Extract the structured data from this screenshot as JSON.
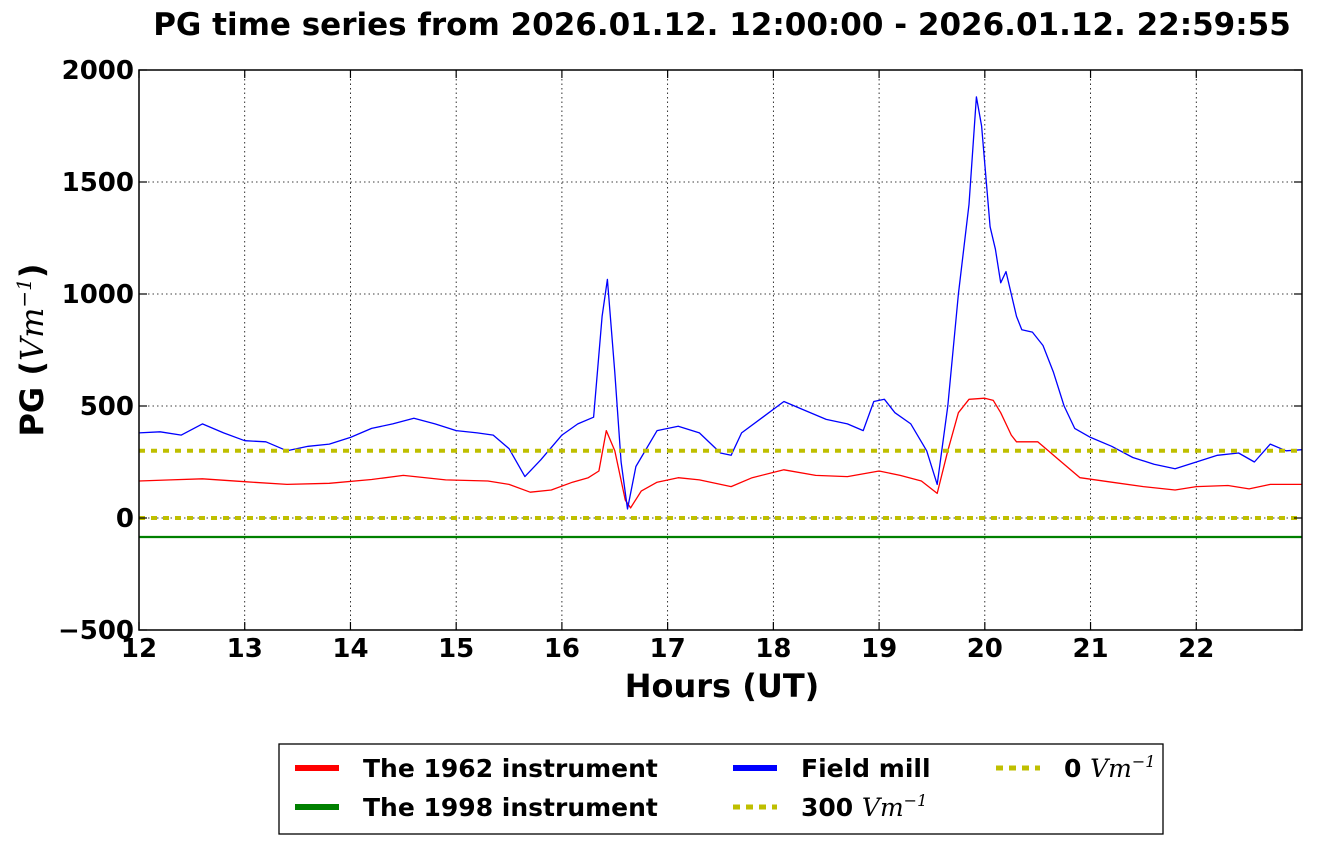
{
  "chart_data": {
    "type": "line",
    "title": "PG time series from 2026.01.12. 12:00:00 - 2026.01.12. 22:59:55",
    "xlabel": "Hours (UT)",
    "ylabel": "PG (",
    "ylabel_unit": "Vm",
    "ylabel_exp": "−1",
    "ylabel_close": ")",
    "xlim": [
      12,
      23
    ],
    "ylim": [
      -500,
      2000
    ],
    "xticks": [
      12,
      13,
      14,
      15,
      16,
      17,
      18,
      19,
      20,
      21,
      22
    ],
    "yticks": [
      -500,
      0,
      500,
      1000,
      1500,
      2000
    ],
    "ytick_labels": [
      "−500",
      "0",
      "500",
      "1000",
      "1500",
      "2000"
    ],
    "grid": true,
    "legend_position": "bottom",
    "series": [
      {
        "name": "The 1962 instrument",
        "color": "#ff0000",
        "style": "solid",
        "x": [
          12.0,
          12.3,
          12.6,
          13.0,
          13.4,
          13.8,
          14.2,
          14.5,
          14.9,
          15.3,
          15.5,
          15.7,
          15.9,
          16.1,
          16.25,
          16.35,
          16.42,
          16.5,
          16.6,
          16.65,
          16.75,
          16.9,
          17.1,
          17.3,
          17.6,
          17.8,
          18.1,
          18.4,
          18.7,
          19.0,
          19.2,
          19.4,
          19.55,
          19.65,
          19.75,
          19.85,
          20.0,
          20.08,
          20.15,
          20.2,
          20.25,
          20.3,
          20.5,
          20.6,
          20.7,
          20.8,
          20.9,
          21.2,
          21.5,
          21.8,
          22.0,
          22.3,
          22.5,
          22.7,
          23.0
        ],
        "y": [
          165,
          170,
          175,
          162,
          150,
          155,
          172,
          190,
          170,
          165,
          150,
          115,
          125,
          160,
          180,
          210,
          390,
          300,
          80,
          45,
          120,
          160,
          180,
          170,
          140,
          180,
          215,
          190,
          185,
          210,
          190,
          165,
          110,
          300,
          470,
          530,
          535,
          525,
          470,
          420,
          370,
          340,
          340,
          300,
          260,
          220,
          180,
          160,
          140,
          125,
          140,
          145,
          130,
          150,
          150
        ]
      },
      {
        "name": "The 1998 instrument",
        "color": "#008000",
        "style": "solid",
        "x": [
          12.0,
          23.0
        ],
        "y": [
          -85,
          -85
        ]
      },
      {
        "name": "Field mill",
        "color": "#0000ff",
        "style": "solid",
        "x": [
          12.0,
          12.2,
          12.4,
          12.6,
          12.8,
          13.0,
          13.2,
          13.4,
          13.6,
          13.8,
          14.0,
          14.2,
          14.4,
          14.6,
          14.8,
          15.0,
          15.2,
          15.35,
          15.5,
          15.65,
          15.8,
          16.0,
          16.15,
          16.3,
          16.38,
          16.43,
          16.5,
          16.56,
          16.62,
          16.7,
          16.9,
          17.1,
          17.3,
          17.5,
          17.6,
          17.7,
          17.9,
          18.1,
          18.3,
          18.5,
          18.7,
          18.85,
          18.95,
          19.05,
          19.15,
          19.3,
          19.45,
          19.55,
          19.65,
          19.75,
          19.85,
          19.92,
          19.97,
          20.05,
          20.1,
          20.15,
          20.2,
          20.3,
          20.35,
          20.45,
          20.55,
          20.65,
          20.75,
          20.85,
          21.0,
          21.2,
          21.4,
          21.6,
          21.8,
          22.0,
          22.2,
          22.4,
          22.55,
          22.7,
          22.85,
          23.0
        ],
        "y": [
          380,
          385,
          370,
          420,
          380,
          345,
          340,
          300,
          320,
          330,
          360,
          400,
          420,
          445,
          420,
          390,
          380,
          370,
          310,
          185,
          260,
          370,
          420,
          450,
          900,
          1065,
          650,
          250,
          40,
          230,
          390,
          410,
          380,
          290,
          280,
          380,
          450,
          520,
          480,
          440,
          420,
          390,
          520,
          530,
          470,
          420,
          300,
          150,
          500,
          1000,
          1400,
          1880,
          1750,
          1300,
          1200,
          1050,
          1100,
          900,
          840,
          830,
          770,
          650,
          500,
          400,
          360,
          320,
          270,
          240,
          220,
          250,
          280,
          290,
          250,
          330,
          300,
          305
        ]
      },
      {
        "name": "300 Vm",
        "name_text": "300",
        "name_unit": "Vm",
        "name_exp": "−1",
        "color": "#bfbf00",
        "style": "dotted",
        "x": [
          12.0,
          23.0
        ],
        "y": [
          300,
          300
        ]
      },
      {
        "name": "0 Vm",
        "name_text": "0",
        "name_unit": "Vm",
        "name_exp": "−1",
        "color": "#bfbf00",
        "style": "dotted",
        "x": [
          12.0,
          23.0
        ],
        "y": [
          0,
          0
        ]
      }
    ]
  }
}
